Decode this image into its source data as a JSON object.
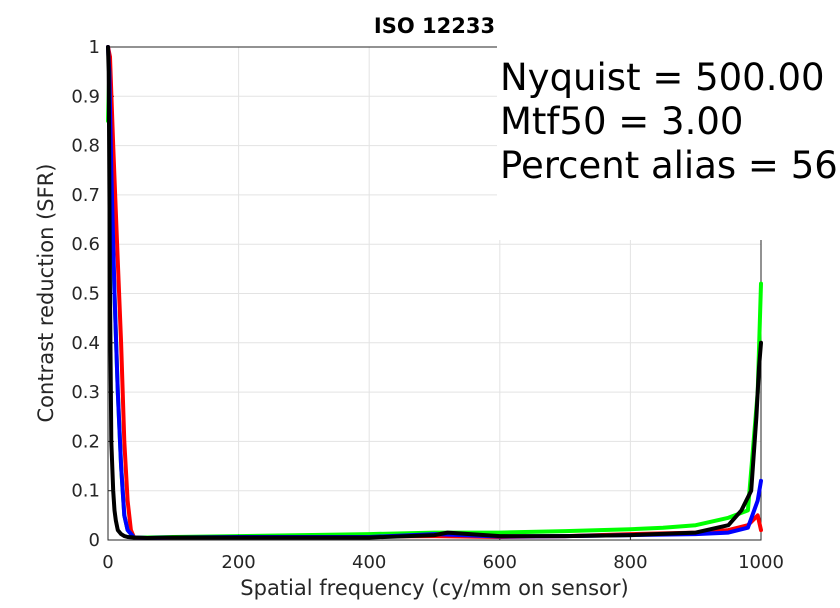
{
  "chart_data": {
    "type": "line",
    "title": "ISO 12233",
    "xlabel": "Spatial frequency (cy/mm on sensor)",
    "ylabel": "Contrast reduction (SFR)",
    "xlim": [
      0,
      1000
    ],
    "ylim": [
      0,
      1
    ],
    "xticks": [
      "0",
      "200",
      "400",
      "600",
      "800",
      "1000"
    ],
    "yticks": [
      "0",
      "0.1",
      "0.2",
      "0.3",
      "0.4",
      "0.5",
      "0.6",
      "0.7",
      "0.8",
      "0.9",
      "1"
    ],
    "grid": true,
    "annotations": [
      "Nyquist = 500.00",
      "Mtf50 = 3.00",
      "Percent alias = 56"
    ],
    "series": [
      {
        "color": "#ff0000",
        "x": [
          0,
          3,
          8,
          14,
          20,
          25,
          30,
          35,
          40,
          60,
          100,
          200,
          300,
          400,
          500,
          600,
          700,
          800,
          900,
          950,
          980,
          995,
          1000
        ],
        "y": [
          1.0,
          0.98,
          0.8,
          0.6,
          0.4,
          0.2,
          0.08,
          0.02,
          0.005,
          0.004,
          0.005,
          0.006,
          0.006,
          0.007,
          0.008,
          0.006,
          0.008,
          0.012,
          0.015,
          0.02,
          0.03,
          0.05,
          0.02
        ]
      },
      {
        "color": "#00ff00",
        "x": [
          0,
          2,
          5,
          10,
          15,
          20,
          25,
          30,
          40,
          60,
          100,
          200,
          300,
          400,
          500,
          600,
          700,
          800,
          850,
          900,
          950,
          980,
          995,
          1000
        ],
        "y": [
          0.85,
          0.95,
          0.7,
          0.5,
          0.3,
          0.15,
          0.05,
          0.02,
          0.005,
          0.005,
          0.006,
          0.008,
          0.01,
          0.012,
          0.015,
          0.015,
          0.018,
          0.022,
          0.025,
          0.03,
          0.045,
          0.06,
          0.3,
          0.52
        ]
      },
      {
        "color": "#0000ff",
        "x": [
          0,
          2,
          5,
          10,
          15,
          20,
          25,
          30,
          40,
          60,
          100,
          200,
          300,
          400,
          500,
          600,
          700,
          800,
          900,
          950,
          980,
          995,
          1000
        ],
        "y": [
          1.0,
          0.95,
          0.75,
          0.5,
          0.3,
          0.15,
          0.05,
          0.02,
          0.005,
          0.004,
          0.005,
          0.006,
          0.006,
          0.006,
          0.012,
          0.007,
          0.008,
          0.01,
          0.012,
          0.015,
          0.025,
          0.08,
          0.12
        ]
      },
      {
        "color": "#000000",
        "x": [
          0,
          1,
          3,
          5,
          8,
          10,
          12,
          15,
          20,
          25,
          30,
          40,
          60,
          100,
          200,
          300,
          400,
          500,
          520,
          600,
          700,
          800,
          900,
          950,
          970,
          985,
          993,
          997,
          1000
        ],
        "y": [
          1.0,
          0.95,
          0.5,
          0.2,
          0.1,
          0.06,
          0.04,
          0.02,
          0.012,
          0.008,
          0.006,
          0.005,
          0.004,
          0.005,
          0.005,
          0.005,
          0.005,
          0.01,
          0.015,
          0.008,
          0.008,
          0.01,
          0.015,
          0.03,
          0.06,
          0.1,
          0.25,
          0.35,
          0.4
        ]
      }
    ]
  }
}
